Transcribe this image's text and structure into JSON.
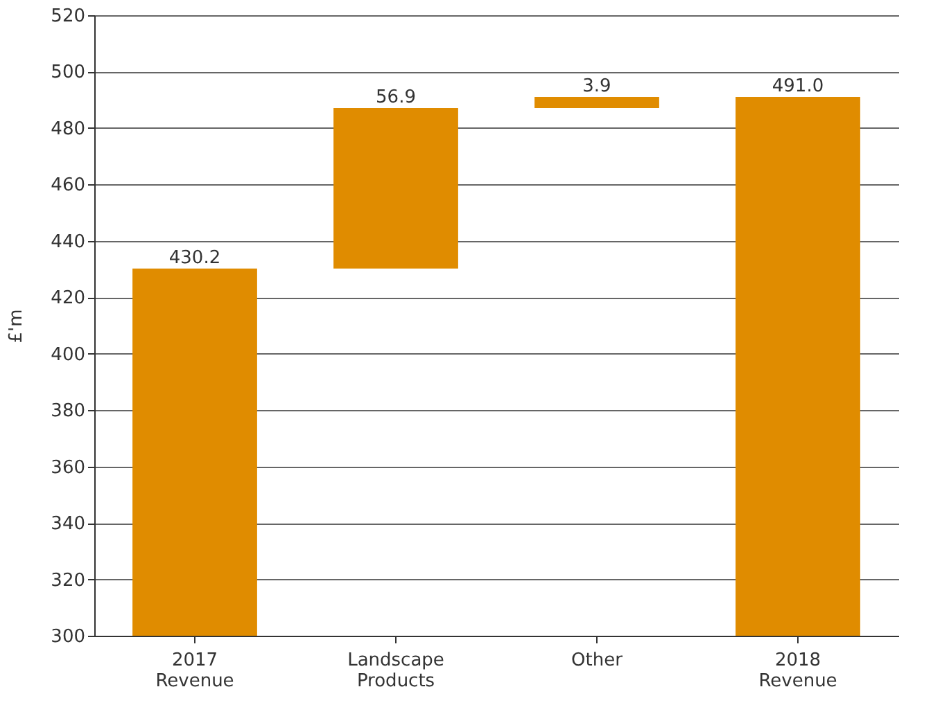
{
  "chart_data": {
    "type": "bar",
    "categories": [
      "2017\nRevenue",
      "Landscape\nProducts",
      "Other",
      "2018\nRevenue"
    ],
    "values": [
      430.2,
      56.9,
      3.9,
      491.0
    ],
    "base": [
      null,
      430.2,
      487.1,
      null
    ],
    "value_labels": [
      "430.2",
      "56.9",
      "3.9",
      "491.0"
    ],
    "color": "#e08c00",
    "ylabel": "£'m",
    "ylim": [
      300,
      520
    ],
    "yticks": [
      300,
      320,
      340,
      360,
      380,
      400,
      420,
      440,
      460,
      480,
      500,
      520
    ],
    "grid": "y"
  }
}
